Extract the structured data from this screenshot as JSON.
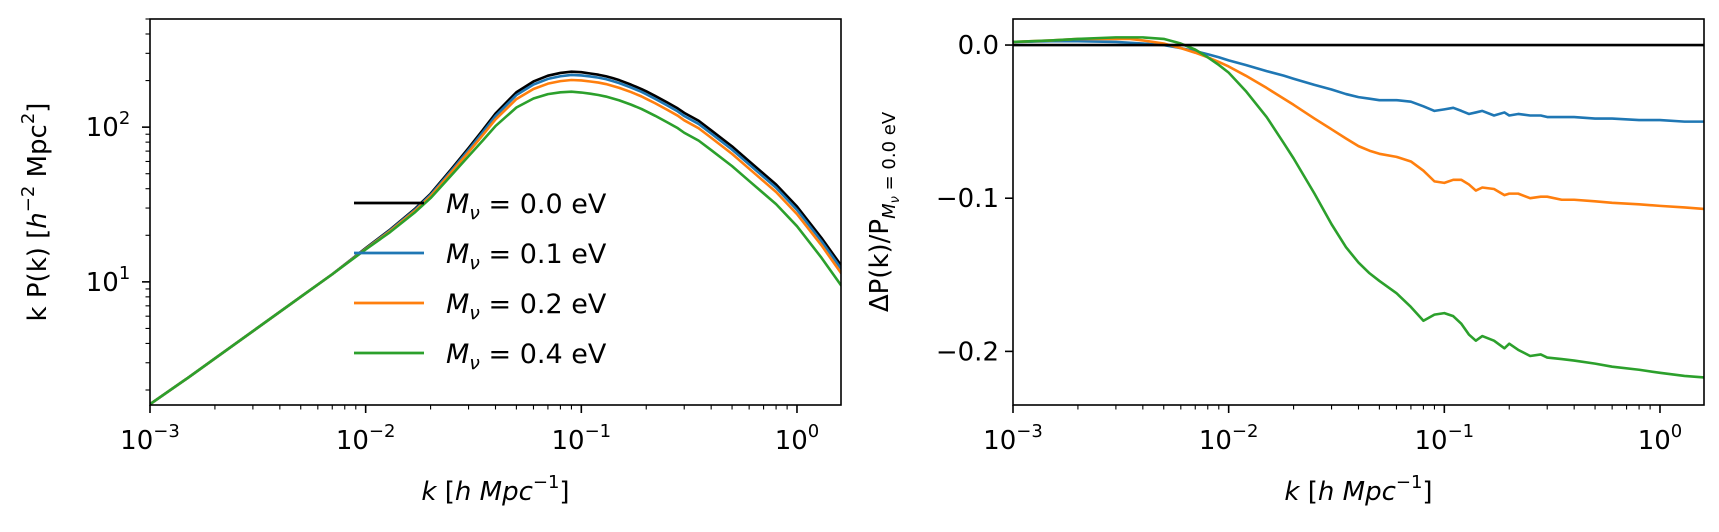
{
  "chart_data": [
    {
      "type": "line",
      "xlabel_parts": [
        "k",
        " [",
        "h Mpc",
        "−1",
        "]"
      ],
      "ylabel_parts": [
        "k P(k) [",
        "h",
        "−2",
        " Mpc",
        "2",
        "]"
      ],
      "xscale": "log",
      "yscale": "log",
      "xlim": [
        0.001,
        1.6
      ],
      "ylim": [
        1.6,
        500
      ],
      "grid": false,
      "legend_position": "center-bottom",
      "x_ticks": [
        {
          "base": "10",
          "exp": "−3",
          "value": 0.001
        },
        {
          "base": "10",
          "exp": "−2",
          "value": 0.01
        },
        {
          "base": "10",
          "exp": "−1",
          "value": 0.1
        },
        {
          "base": "10",
          "exp": "0",
          "value": 1
        }
      ],
      "y_ticks": [
        {
          "base": "10",
          "exp": "1",
          "value": 10
        },
        {
          "base": "10",
          "exp": "2",
          "value": 100
        }
      ],
      "x": [
        0.001,
        0.0015,
        0.002,
        0.003,
        0.005,
        0.007,
        0.01,
        0.013,
        0.017,
        0.02,
        0.025,
        0.03,
        0.035,
        0.04,
        0.05,
        0.06,
        0.07,
        0.08,
        0.09,
        0.1,
        0.11,
        0.12,
        0.13,
        0.14,
        0.15,
        0.17,
        0.19,
        0.2,
        0.22,
        0.25,
        0.28,
        0.3,
        0.35,
        0.4,
        0.5,
        0.6,
        0.8,
        1.0,
        1.3,
        1.6
      ],
      "series": [
        {
          "name": "M_ν = 0.0 eV",
          "label_prefix": "M",
          "label_sub": "ν",
          "label_suffix": " = 0.0 eV",
          "color": "#000000",
          "values": [
            1.62,
            2.4,
            3.2,
            4.8,
            8.0,
            11.2,
            16.5,
            21.8,
            29.8,
            37.1,
            53.7,
            73.2,
            96.2,
            122.5,
            168.1,
            197.3,
            215.1,
            224.0,
            228.4,
            226.6,
            222.2,
            218.2,
            213.3,
            207.3,
            201.2,
            188.2,
            176.3,
            170.4,
            159.1,
            144.5,
            132.2,
            123.7,
            110.0,
            95.4,
            75.1,
            60.2,
            42.6,
            30.7,
            19.2,
            12.8
          ]
        },
        {
          "name": "M_ν = 0.1 eV",
          "label_prefix": "M",
          "label_sub": "ν",
          "label_suffix": " = 0.1 eV",
          "color": "#1f77b4",
          "values": [
            1.62,
            2.4,
            3.2,
            4.8,
            8.0,
            11.2,
            16.4,
            21.6,
            29.4,
            36.5,
            52.5,
            71.2,
            93.1,
            118.0,
            161.2,
            188.6,
            205.0,
            213.3,
            217.4,
            216.0,
            212.6,
            208.9,
            204.3,
            198.3,
            192.5,
            180.4,
            169.1,
            163.2,
            152.3,
            138.2,
            126.4,
            118.0,
            104.9,
            91.0,
            71.6,
            57.4,
            40.6,
            29.2,
            18.3,
            12.2
          ]
        },
        {
          "name": "M_ν = 0.2 eV",
          "label_prefix": "M",
          "label_sub": "ν",
          "label_suffix": " = 0.2 eV",
          "color": "#ff7f0e",
          "values": [
            1.62,
            2.4,
            3.2,
            4.8,
            8.0,
            11.2,
            16.3,
            21.3,
            28.9,
            35.8,
            51.1,
            68.9,
            89.2,
            112.1,
            151.8,
            176.4,
            191.0,
            198.4,
            201.7,
            200.3,
            197.3,
            194.1,
            189.9,
            184.6,
            179.4,
            168.5,
            158.1,
            152.5,
            142.7,
            129.5,
            118.6,
            110.7,
            98.4,
            85.4,
            67.2,
            53.9,
            38.1,
            27.4,
            17.2,
            11.4
          ]
        },
        {
          "name": "M_ν = 0.4 eV",
          "label_prefix": "M",
          "label_sub": "ν",
          "label_suffix": " = 0.4 eV",
          "color": "#2ca02c",
          "values": [
            1.62,
            2.4,
            3.2,
            4.8,
            8.0,
            11.2,
            16.2,
            21.0,
            28.3,
            34.8,
            49.0,
            64.9,
            82.3,
            101.6,
            134.0,
            153.2,
            163.4,
            167.9,
            169.4,
            167.4,
            164.5,
            161.3,
            157.7,
            153.2,
            148.9,
            139.8,
            131.2,
            126.6,
            118.4,
            107.6,
            98.5,
            92.0,
            81.8,
            71.1,
            56.0,
            44.9,
            31.8,
            22.9,
            14.3,
            9.5
          ]
        }
      ]
    },
    {
      "type": "line",
      "xlabel_parts": [
        "k",
        " [",
        "h Mpc",
        "−1",
        "]"
      ],
      "ylabel_parts": [
        "ΔP(k)/P",
        "M",
        "ν",
        " = 0.0 eV"
      ],
      "xscale": "log",
      "yscale": "linear",
      "xlim": [
        0.001,
        1.6
      ],
      "ylim": [
        -0.235,
        0.017
      ],
      "grid": false,
      "legend_position": "none",
      "x_ticks": [
        {
          "base": "10",
          "exp": "−3",
          "value": 0.001
        },
        {
          "base": "10",
          "exp": "−2",
          "value": 0.01
        },
        {
          "base": "10",
          "exp": "−1",
          "value": 0.1
        },
        {
          "base": "10",
          "exp": "0",
          "value": 1
        }
      ],
      "y_ticks": [
        {
          "label": "0.0",
          "value": 0.0
        },
        {
          "label": "−0.1",
          "value": -0.1
        },
        {
          "label": "−0.2",
          "value": -0.2
        }
      ],
      "x": [
        0.001,
        0.0015,
        0.002,
        0.003,
        0.0035,
        0.004,
        0.005,
        0.006,
        0.007,
        0.008,
        0.009,
        0.01,
        0.012,
        0.015,
        0.018,
        0.02,
        0.025,
        0.03,
        0.035,
        0.04,
        0.045,
        0.05,
        0.06,
        0.07,
        0.08,
        0.09,
        0.1,
        0.11,
        0.12,
        0.13,
        0.14,
        0.15,
        0.17,
        0.19,
        0.2,
        0.22,
        0.25,
        0.28,
        0.3,
        0.35,
        0.4,
        0.5,
        0.6,
        0.8,
        1.0,
        1.3,
        1.6
      ],
      "series": [
        {
          "name": "M_ν = 0.0 eV",
          "color": "#000000",
          "values": [
            0.0,
            0.0,
            0.0,
            0.0,
            0.0,
            0.0,
            0.0,
            0.0,
            0.0,
            0.0,
            0.0,
            0.0,
            0.0,
            0.0,
            0.0,
            0.0,
            0.0,
            0.0,
            0.0,
            0.0,
            0.0,
            0.0,
            0.0,
            0.0,
            0.0,
            0.0,
            0.0,
            0.0,
            0.0,
            0.0,
            0.0,
            0.0,
            0.0,
            0.0,
            0.0,
            0.0,
            0.0,
            0.0,
            0.0,
            0.0,
            0.0,
            0.0,
            0.0,
            0.0,
            0.0,
            0.0,
            0.0
          ]
        },
        {
          "name": "M_ν = 0.1 eV",
          "color": "#1f77b4",
          "values": [
            0.002,
            0.0025,
            0.0025,
            0.002,
            0.0015,
            0.001,
            0.0,
            -0.002,
            -0.004,
            -0.006,
            -0.008,
            -0.01,
            -0.013,
            -0.017,
            -0.02,
            -0.022,
            -0.026,
            -0.029,
            -0.032,
            -0.034,
            -0.035,
            -0.036,
            -0.036,
            -0.037,
            -0.04,
            -0.043,
            -0.042,
            -0.041,
            -0.043,
            -0.045,
            -0.044,
            -0.043,
            -0.046,
            -0.044,
            -0.046,
            -0.045,
            -0.046,
            -0.046,
            -0.047,
            -0.047,
            -0.047,
            -0.048,
            -0.048,
            -0.049,
            -0.049,
            -0.05,
            -0.05
          ]
        },
        {
          "name": "M_ν = 0.2 eV",
          "color": "#ff7f0e",
          "values": [
            0.002,
            0.003,
            0.004,
            0.004,
            0.004,
            0.003,
            0.001,
            -0.002,
            -0.005,
            -0.008,
            -0.011,
            -0.014,
            -0.02,
            -0.028,
            -0.035,
            -0.039,
            -0.048,
            -0.055,
            -0.061,
            -0.066,
            -0.069,
            -0.071,
            -0.073,
            -0.076,
            -0.082,
            -0.089,
            -0.09,
            -0.088,
            -0.088,
            -0.091,
            -0.095,
            -0.093,
            -0.094,
            -0.098,
            -0.097,
            -0.097,
            -0.1,
            -0.099,
            -0.099,
            -0.101,
            -0.101,
            -0.102,
            -0.103,
            -0.104,
            -0.105,
            -0.106,
            -0.107
          ]
        },
        {
          "name": "M_ν = 0.4 eV",
          "color": "#2ca02c",
          "values": [
            0.002,
            0.003,
            0.004,
            0.005,
            0.005,
            0.005,
            0.004,
            0.001,
            -0.003,
            -0.008,
            -0.013,
            -0.018,
            -0.03,
            -0.047,
            -0.064,
            -0.074,
            -0.097,
            -0.117,
            -0.132,
            -0.142,
            -0.149,
            -0.154,
            -0.162,
            -0.171,
            -0.18,
            -0.176,
            -0.175,
            -0.177,
            -0.182,
            -0.189,
            -0.193,
            -0.19,
            -0.193,
            -0.198,
            -0.195,
            -0.199,
            -0.203,
            -0.202,
            -0.204,
            -0.205,
            -0.206,
            -0.208,
            -0.21,
            -0.212,
            -0.214,
            -0.216,
            -0.217
          ]
        }
      ]
    }
  ]
}
